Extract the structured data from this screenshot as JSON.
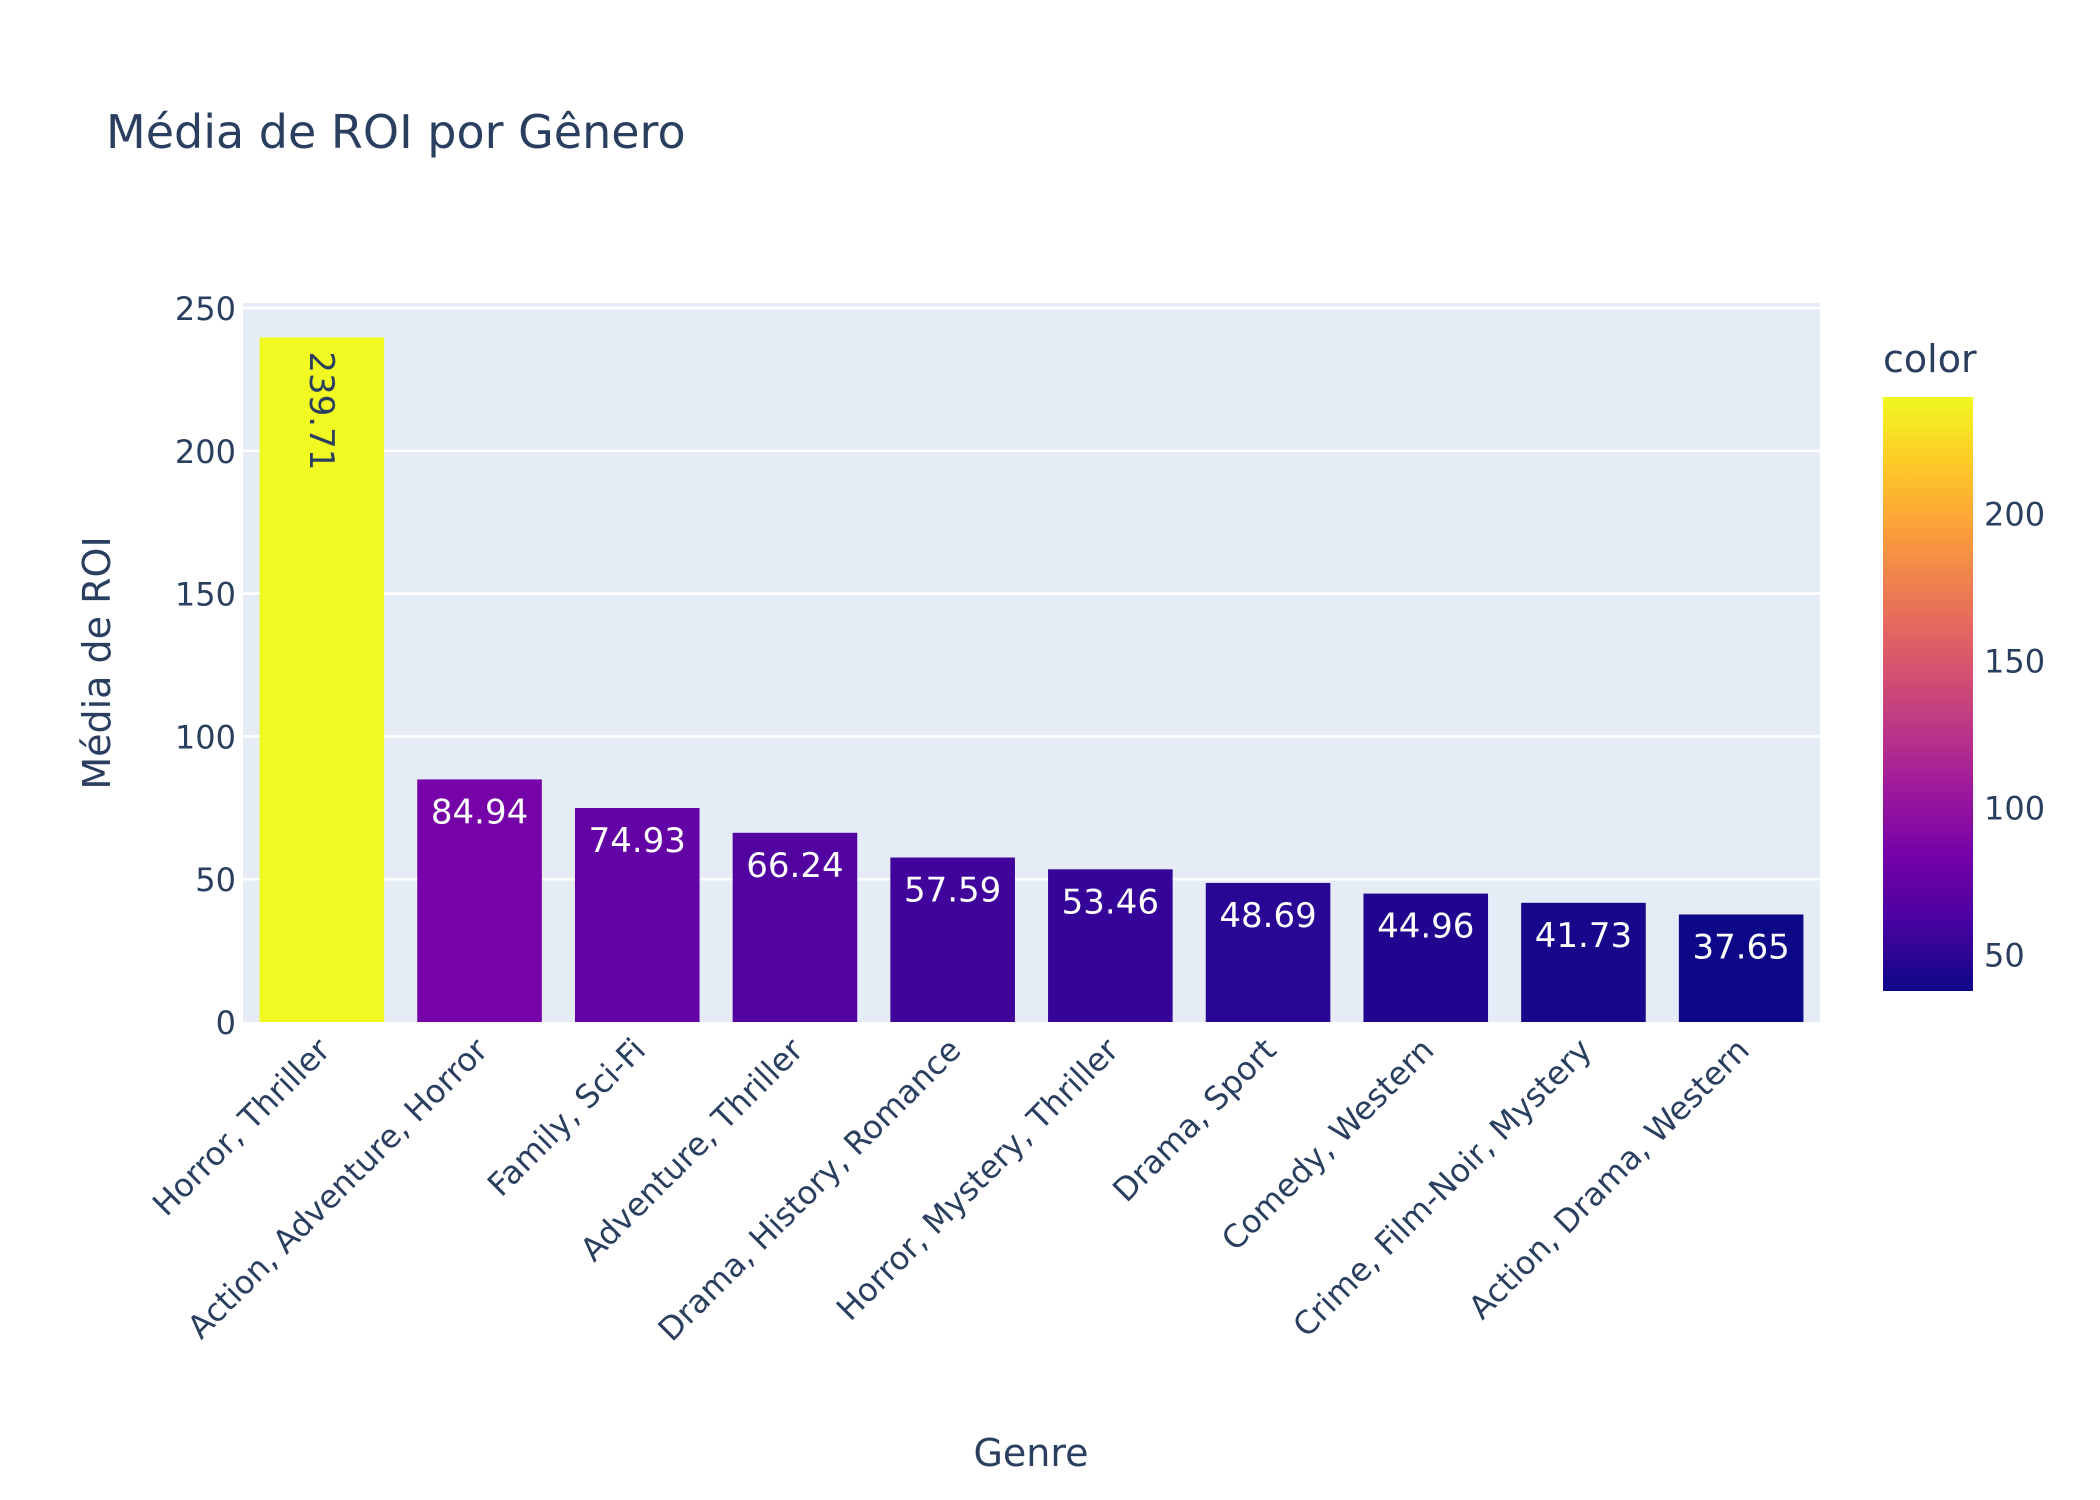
{
  "chart_data": {
    "type": "bar",
    "title": "Média de ROI por Gênero",
    "xlabel": "Genre",
    "ylabel": "Média de ROI",
    "ylim": [
      0,
      250
    ],
    "yticks": [
      "0",
      "50",
      "100",
      "150",
      "200",
      "250"
    ],
    "categories": [
      "Horror, Thriller",
      "Action, Adventure, Horror",
      "Family, Sci-Fi",
      "Adventure, Thriller",
      "Drama, History, Romance",
      "Horror, Mystery, Thriller",
      "Drama, Sport",
      "Comedy, Western",
      "Crime, Film-Noir, Mystery",
      "Action, Drama, Western"
    ],
    "values": [
      239.71,
      84.94,
      74.93,
      66.24,
      57.59,
      53.46,
      48.69,
      44.96,
      41.73,
      37.65
    ],
    "data_labels": [
      "239.71",
      "84.94",
      "74.93",
      "66.24",
      "57.59",
      "53.46",
      "48.69",
      "44.96",
      "41.73",
      "37.65"
    ],
    "grid": true,
    "colorbar": {
      "title": "color",
      "range": [
        37.65,
        239.71
      ],
      "ticks": [
        "50",
        "100",
        "150",
        "200"
      ],
      "tick_values": [
        50,
        100,
        150,
        200
      ],
      "colorscale": [
        "#0d0887",
        "#46039f",
        "#7201a8",
        "#9c179e",
        "#bd3786",
        "#d8576b",
        "#ed7953",
        "#fb9f3a",
        "#fdca26",
        "#f0f921"
      ]
    },
    "colors": {
      "plot_bg": "#e5ecf6",
      "grid": "#ffffff",
      "text": "#2a3f5f"
    }
  }
}
